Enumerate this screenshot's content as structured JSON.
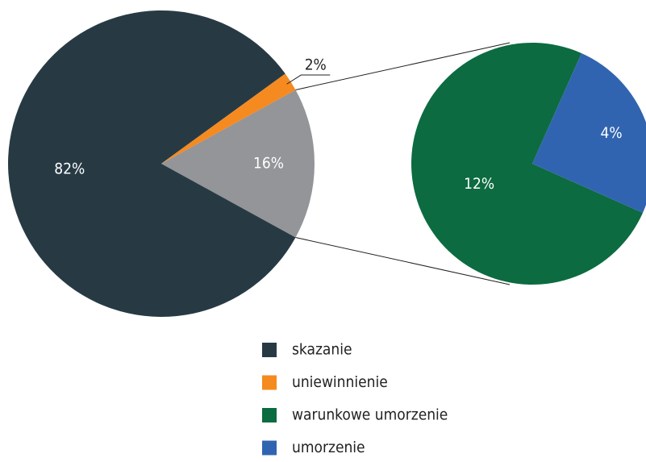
{
  "chart_data": {
    "type": "pie_of_pie",
    "series": [
      {
        "name": "skazanie",
        "color": "#273a44",
        "value": 82,
        "value_label": "82%"
      },
      {
        "name": "uniewinnienie",
        "color": "#f58a20",
        "value": 2,
        "value_label": "2%"
      }
    ],
    "other": {
      "color": "#939598",
      "value": 16,
      "value_label": "16%"
    },
    "breakout": [
      {
        "name": "warunkowe umorzenie",
        "color": "#0c6b40",
        "value": 12,
        "value_label": "12%"
      },
      {
        "name": "umorzenie",
        "color": "#3164b0",
        "value": 4,
        "value_label": "4%"
      }
    ],
    "legend": "bottom"
  }
}
